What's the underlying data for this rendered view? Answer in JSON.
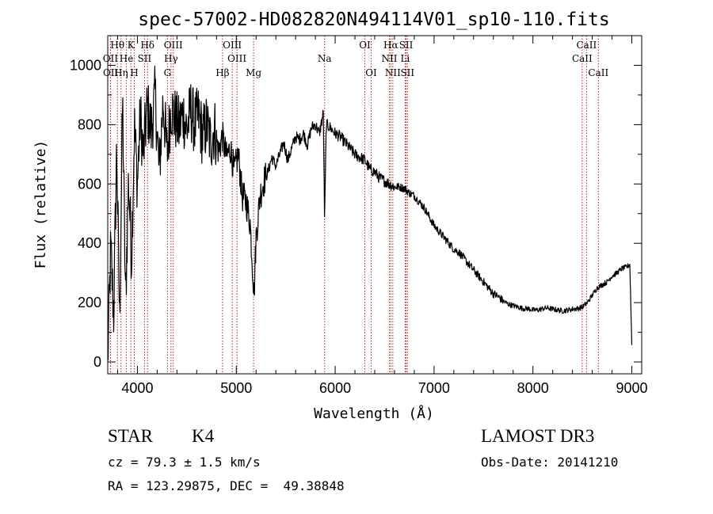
{
  "chart_data": {
    "type": "line",
    "title": "spec-57002-HD082820N494114V01_sp10-110.fits",
    "xlabel": "Wavelength (Å)",
    "ylabel": "Flux (relative)",
    "xlim": [
      3700,
      9100
    ],
    "ylim": [
      -40,
      1100
    ],
    "xticks": [
      4000,
      5000,
      6000,
      7000,
      8000,
      9000
    ],
    "yticks": [
      0,
      200,
      400,
      600,
      800,
      1000
    ],
    "series": [
      {
        "name": "spectrum",
        "x": [
          3700,
          3730,
          3760,
          3790,
          3820,
          3850,
          3880,
          3910,
          3940,
          3970,
          4000,
          4030,
          4060,
          4100,
          4140,
          4180,
          4220,
          4260,
          4300,
          4340,
          4380,
          4420,
          4460,
          4500,
          4540,
          4580,
          4620,
          4660,
          4700,
          4740,
          4780,
          4820,
          4860,
          4900,
          4940,
          4980,
          5020,
          5060,
          5100,
          5140,
          5180,
          5200,
          5240,
          5280,
          5320,
          5360,
          5400,
          5440,
          5480,
          5520,
          5560,
          5600,
          5640,
          5680,
          5720,
          5760,
          5800,
          5840,
          5880,
          5893,
          5910,
          5950,
          6000,
          6050,
          6100,
          6150,
          6200,
          6250,
          6300,
          6350,
          6400,
          6450,
          6500,
          6550,
          6600,
          6650,
          6700,
          6750,
          6800,
          6850,
          6900,
          6950,
          7000,
          7050,
          7100,
          7150,
          7200,
          7250,
          7300,
          7350,
          7400,
          7450,
          7500,
          7550,
          7600,
          7650,
          7700,
          7750,
          7800,
          7850,
          7900,
          7950,
          8000,
          8050,
          8100,
          8150,
          8200,
          8250,
          8300,
          8350,
          8400,
          8450,
          8500,
          8550,
          8600,
          8650,
          8700,
          8750,
          8800,
          8850,
          8900,
          8950,
          8980,
          9000
        ],
        "y": [
          0,
          380,
          160,
          720,
          140,
          880,
          200,
          620,
          350,
          800,
          600,
          830,
          700,
          860,
          780,
          900,
          640,
          880,
          700,
          860,
          820,
          790,
          840,
          780,
          850,
          800,
          830,
          760,
          800,
          740,
          790,
          710,
          760,
          690,
          720,
          640,
          700,
          560,
          540,
          470,
          230,
          420,
          560,
          610,
          640,
          690,
          660,
          700,
          740,
          680,
          720,
          760,
          750,
          770,
          730,
          790,
          800,
          770,
          840,
          470,
          800,
          790,
          770,
          760,
          740,
          720,
          700,
          690,
          680,
          650,
          640,
          620,
          610,
          600,
          590,
          590,
          585,
          570,
          560,
          540,
          520,
          490,
          460,
          440,
          420,
          400,
          380,
          370,
          350,
          330,
          310,
          290,
          270,
          250,
          230,
          220,
          205,
          195,
          190,
          185,
          180,
          180,
          175,
          175,
          180,
          182,
          178,
          175,
          172,
          175,
          178,
          180,
          185,
          200,
          225,
          250,
          260,
          270,
          290,
          300,
          315,
          320,
          330,
          60
        ]
      }
    ],
    "spectral_lines": [
      {
        "label": "Hθ",
        "wavelength": 3798,
        "row": 1
      },
      {
        "label": "K",
        "wavelength": 3934,
        "row": 1
      },
      {
        "label": "Hδ",
        "wavelength": 4102,
        "row": 1
      },
      {
        "label": "OIII",
        "wavelength": 4363,
        "row": 1
      },
      {
        "label": "OIII",
        "wavelength": 4959,
        "row": 1
      },
      {
        "label": "OI",
        "wavelength": 6300,
        "row": 1
      },
      {
        "label": "Hα",
        "wavelength": 6563,
        "row": 1
      },
      {
        "label": "SII",
        "wavelength": 6717,
        "row": 1
      },
      {
        "label": "CaII",
        "wavelength": 8542,
        "row": 1
      },
      {
        "label": "OII",
        "wavelength": 3727,
        "row": 2
      },
      {
        "label": "He",
        "wavelength": 3889,
        "row": 2
      },
      {
        "label": "SII",
        "wavelength": 4072,
        "row": 2
      },
      {
        "label": "Hγ",
        "wavelength": 4340,
        "row": 2
      },
      {
        "label": "OIII",
        "wavelength": 5007,
        "row": 2
      },
      {
        "label": "Na",
        "wavelength": 5893,
        "row": 2
      },
      {
        "label": "NII",
        "wavelength": 6548,
        "row": 2
      },
      {
        "label": "Li",
        "wavelength": 6708,
        "row": 2
      },
      {
        "label": "CaII",
        "wavelength": 8498,
        "row": 2
      },
      {
        "label": "OII",
        "wavelength": 3729,
        "row": 3
      },
      {
        "label": "Hη",
        "wavelength": 3835,
        "row": 3
      },
      {
        "label": "H",
        "wavelength": 3968,
        "row": 3
      },
      {
        "label": "G",
        "wavelength": 4304,
        "row": 3
      },
      {
        "label": "Hβ",
        "wavelength": 4861,
        "row": 3
      },
      {
        "label": "Mg",
        "wavelength": 5175,
        "row": 3
      },
      {
        "label": "OI",
        "wavelength": 6364,
        "row": 3
      },
      {
        "label": "NII",
        "wavelength": 6583,
        "row": 3
      },
      {
        "label": "SII",
        "wavelength": 6731,
        "row": 3
      },
      {
        "label": "CaII",
        "wavelength": 8662,
        "row": 3
      }
    ]
  },
  "info": {
    "object_class": "STAR",
    "subclass": "K4",
    "survey": "LAMOST DR3",
    "redshift": "cz = 79.3 ± 1.5 km/s",
    "obs_date": "Obs-Date: 20141210",
    "coords": "RA = 123.29875, DEC =  49.38848"
  }
}
